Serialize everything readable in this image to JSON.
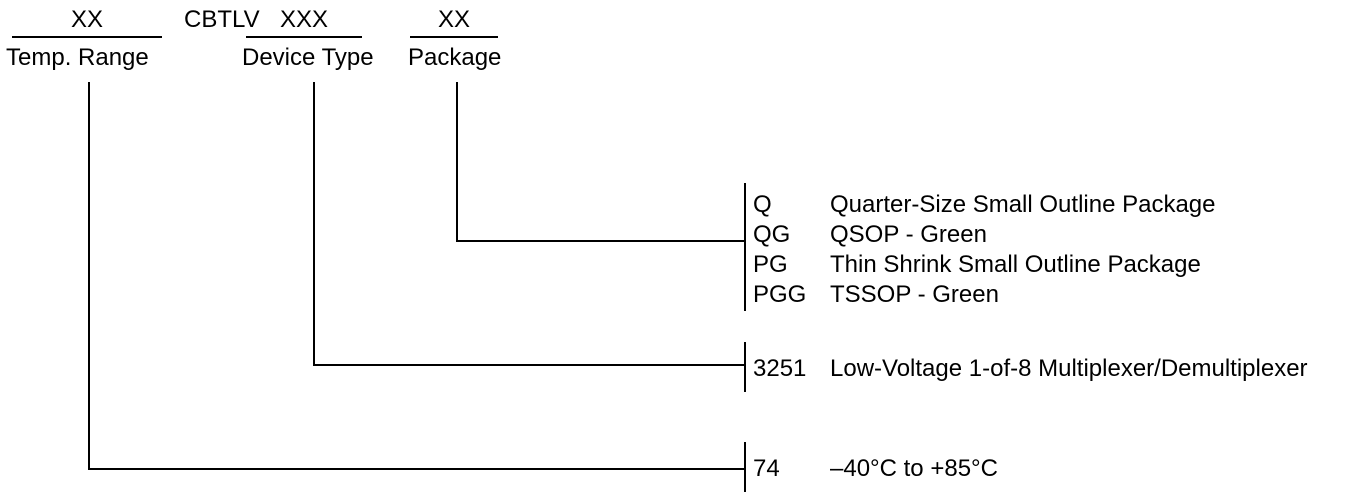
{
  "header": {
    "temp_field": "XX",
    "prefix": "CBTLV",
    "device_field": "XXX",
    "package_field": "XX",
    "temp_label": "Temp. Range",
    "device_label": "Device Type",
    "package_label": "Package"
  },
  "package_options": [
    {
      "code": "Q",
      "description": "Quarter-Size Small Outline Package"
    },
    {
      "code": "QG",
      "description": "QSOP - Green"
    },
    {
      "code": "PG",
      "description": "Thin Shrink Small Outline Package"
    },
    {
      "code": "PGG",
      "description": "TSSOP - Green"
    }
  ],
  "device_options": [
    {
      "code": "3251",
      "description": "Low-Voltage 1-of-8 Multiplexer/Demultiplexer"
    }
  ],
  "temp_options": [
    {
      "code": "74",
      "description": "–40°C to +85°C"
    }
  ]
}
